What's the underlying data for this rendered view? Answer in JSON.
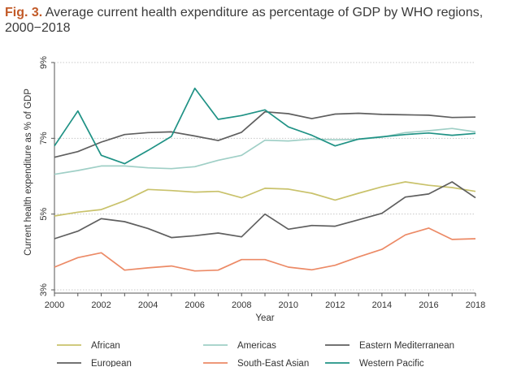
{
  "figure": {
    "label": "Fig. 3.",
    "title": "Average current health expenditure as percentage of GDP by WHO regions, 2000−2018"
  },
  "chart_data": {
    "type": "line",
    "xlabel": "Year",
    "ylabel": "Current health expenditure as % of GDP",
    "x": [
      2000,
      2001,
      2002,
      2003,
      2004,
      2005,
      2006,
      2007,
      2008,
      2009,
      2010,
      2011,
      2012,
      2013,
      2014,
      2015,
      2016,
      2017,
      2018
    ],
    "xticks": [
      2000,
      2002,
      2004,
      2006,
      2008,
      2010,
      2012,
      2014,
      2016,
      2018
    ],
    "xtick_labels": [
      "2000",
      "2002",
      "2004",
      "2006",
      "2008",
      "2010",
      "2012",
      "2014",
      "2016",
      "2018"
    ],
    "yticks": [
      3,
      5,
      7,
      9
    ],
    "ytick_labels": [
      "3%",
      "5%",
      "7%",
      "9%"
    ],
    "xlim": [
      2000,
      2018
    ],
    "ylim": [
      3,
      9
    ],
    "grid": "horizontal",
    "legend_position": "bottom",
    "series": [
      {
        "name": "African",
        "color": "#c9c26b",
        "values": [
          4.95,
          5.05,
          5.12,
          5.35,
          5.65,
          5.62,
          5.58,
          5.6,
          5.43,
          5.68,
          5.66,
          5.55,
          5.37,
          5.55,
          5.72,
          5.85,
          5.76,
          5.7,
          5.6
        ]
      },
      {
        "name": "Americas",
        "color": "#9fcfc6",
        "values": [
          6.05,
          6.15,
          6.27,
          6.27,
          6.22,
          6.2,
          6.25,
          6.42,
          6.55,
          6.95,
          6.93,
          6.98,
          6.96,
          6.97,
          7.03,
          7.15,
          7.2,
          7.26,
          7.17
        ]
      },
      {
        "name": "Eastern Mediterranean",
        "color": "#5f5f5f",
        "values": [
          6.5,
          6.65,
          6.9,
          7.1,
          7.15,
          7.17,
          7.06,
          6.94,
          7.16,
          7.7,
          7.65,
          7.52,
          7.64,
          7.66,
          7.63,
          7.62,
          7.61,
          7.55,
          7.56
        ]
      },
      {
        "name": "European",
        "color": "#5f5f5f",
        "values": [
          4.35,
          4.55,
          4.88,
          4.8,
          4.62,
          4.38,
          4.43,
          4.5,
          4.4,
          5.0,
          4.6,
          4.7,
          4.68,
          4.85,
          5.02,
          5.45,
          5.53,
          5.85,
          5.43
        ]
      },
      {
        "name": "South-East Asian",
        "color": "#ec8a66",
        "values": [
          3.6,
          3.85,
          3.98,
          3.52,
          3.58,
          3.63,
          3.5,
          3.52,
          3.8,
          3.8,
          3.6,
          3.53,
          3.65,
          3.87,
          4.07,
          4.45,
          4.63,
          4.33,
          4.35
        ]
      },
      {
        "name": "Western Pacific",
        "color": "#1f9285",
        "values": [
          6.8,
          7.72,
          6.55,
          6.33,
          6.68,
          7.05,
          8.32,
          7.5,
          7.6,
          7.75,
          7.3,
          7.08,
          6.8,
          6.98,
          7.04,
          7.1,
          7.14,
          7.08,
          7.13
        ]
      }
    ]
  }
}
